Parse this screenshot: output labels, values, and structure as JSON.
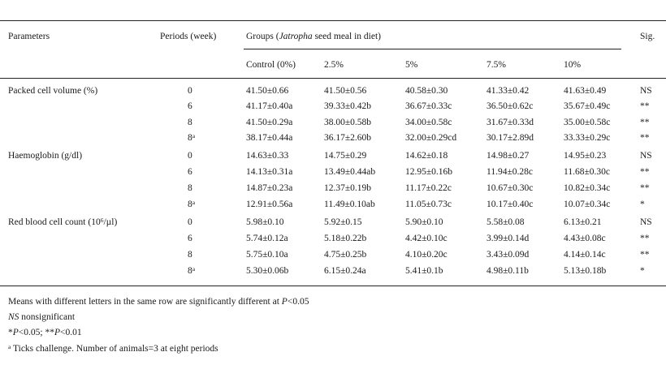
{
  "header": {
    "parameters": "Parameters",
    "periods": "Periods (week)",
    "groups_prefix": "Groups (",
    "groups_italic": "Jatropha",
    "groups_suffix": " seed meal in diet)",
    "sig": "Sig.",
    "subcols": [
      "Control (0%)",
      "2.5%",
      "5%",
      "7.5%",
      "10%"
    ]
  },
  "sections": [
    {
      "label": "Packed cell volume (%)",
      "label_sup": "",
      "label_suffix": "",
      "rows": [
        {
          "period": "0",
          "period_sup": "",
          "values": [
            "41.50±0.66",
            "41.50±0.56",
            "40.58±0.30",
            "41.33±0.42",
            "41.63±0.49"
          ],
          "sig": "NS"
        },
        {
          "period": "6",
          "period_sup": "",
          "values": [
            "41.17±0.40a",
            "39.33±0.42b",
            "36.67±0.33c",
            "36.50±0.62c",
            "35.67±0.49c"
          ],
          "sig": "**"
        },
        {
          "period": "8",
          "period_sup": "",
          "values": [
            "41.50±0.29a",
            "38.00±0.58b",
            "34.00±0.58c",
            "31.67±0.33d",
            "35.00±0.58c"
          ],
          "sig": "**"
        },
        {
          "period": "8",
          "period_sup": "a",
          "values": [
            "38.17±0.44a",
            "36.17±2.60b",
            "32.00±0.29cd",
            "30.17±2.89d",
            "33.33±0.29c"
          ],
          "sig": "**"
        }
      ]
    },
    {
      "label": "Haemoglobin (g/dl)",
      "label_sup": "",
      "label_suffix": "",
      "rows": [
        {
          "period": "0",
          "period_sup": "",
          "values": [
            "14.63±0.33",
            "14.75±0.29",
            "14.62±0.18",
            "14.98±0.27",
            "14.95±0.23"
          ],
          "sig": "NS"
        },
        {
          "period": "6",
          "period_sup": "",
          "values": [
            "14.13±0.31a",
            "13.49±0.44ab",
            "12.95±0.16b",
            "11.94±0.28c",
            "11.68±0.30c"
          ],
          "sig": "**"
        },
        {
          "period": "8",
          "period_sup": "",
          "values": [
            "14.87±0.23a",
            "12.37±0.19b",
            "11.17±0.22c",
            "10.67±0.30c",
            "10.82±0.34c"
          ],
          "sig": "**"
        },
        {
          "period": "8",
          "period_sup": "a",
          "values": [
            "12.91±0.56a",
            "11.49±0.10ab",
            "11.05±0.73c",
            "10.17±0.40c",
            "10.07±0.34c"
          ],
          "sig": "*"
        }
      ]
    },
    {
      "label": "Red blood cell count (10",
      "label_sup": "6",
      "label_suffix": "/µl)",
      "rows": [
        {
          "period": "0",
          "period_sup": "",
          "values": [
            "5.98±0.10",
            "5.92±0.15",
            "5.90±0.10",
            "5.58±0.08",
            "6.13±0.21"
          ],
          "sig": "NS"
        },
        {
          "period": "6",
          "period_sup": "",
          "values": [
            "5.74±0.12a",
            "5.18±0.22b",
            "4.42±0.10c",
            "3.99±0.14d",
            "4.43±0.08c"
          ],
          "sig": "**"
        },
        {
          "period": "8",
          "period_sup": "",
          "values": [
            "5.75±0.10a",
            "4.75±0.25b",
            "4.10±0.20c",
            "3.43±0.09d",
            "4.14±0.14c"
          ],
          "sig": "**"
        },
        {
          "period": "8",
          "period_sup": "a",
          "values": [
            "5.30±0.06b",
            "6.15±0.24a",
            "5.41±0.1b",
            "4.98±0.11b",
            "5.13±0.18b"
          ],
          "sig": "*"
        }
      ]
    }
  ],
  "footnotes": {
    "line1_prefix": "Means with different letters in the same row are significantly different at ",
    "line1_p": "P",
    "line1_suffix": "<0.05",
    "ns_italic": "NS",
    "ns_text": " nonsignificant",
    "sig_star": "*",
    "sig_p1": "P",
    "sig_mid": "<0.05; **",
    "sig_p2": "P",
    "sig_end": "<0.01",
    "ticks_sup": "a",
    "ticks_text": " Ticks challenge. Number of animals=3 at eight periods"
  }
}
